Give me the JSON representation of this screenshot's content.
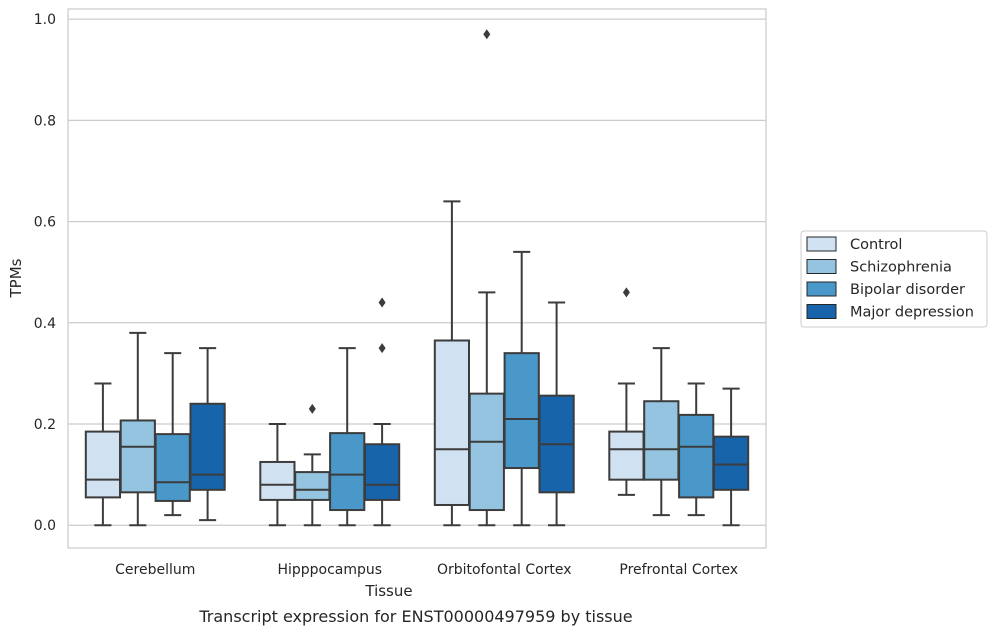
{
  "chart_data": {
    "type": "box",
    "xlabel": "Tissue",
    "ylabel": "TPMs",
    "caption": "Transcript expression for ENST00000497959 by tissue",
    "ylim": [
      -0.045,
      1.02
    ],
    "yticks": [
      "0.0",
      "0.2",
      "0.4",
      "0.6",
      "0.8",
      "1.0"
    ],
    "ytick_values": [
      0.0,
      0.2,
      0.4,
      0.6,
      0.8,
      1.0
    ],
    "grid": "horizontal",
    "legend_placement": "right",
    "categories": [
      "Cerebellum",
      "Hipppocampus",
      "Orbitofontal Cortex",
      "Prefrontal Cortex"
    ],
    "series": [
      {
        "name": "Control",
        "color": "#d0e1f2",
        "boxes": [
          {
            "whislo": 0.0,
            "q1": 0.055,
            "med": 0.09,
            "q3": 0.185,
            "whishi": 0.28,
            "fliers": []
          },
          {
            "whislo": 0.0,
            "q1": 0.05,
            "med": 0.08,
            "q3": 0.125,
            "whishi": 0.2,
            "fliers": []
          },
          {
            "whislo": 0.0,
            "q1": 0.04,
            "med": 0.15,
            "q3": 0.365,
            "whishi": 0.64,
            "fliers": []
          },
          {
            "whislo": 0.06,
            "q1": 0.09,
            "med": 0.15,
            "q3": 0.185,
            "whishi": 0.28,
            "fliers": [
              0.46
            ]
          }
        ]
      },
      {
        "name": "Schizophrenia",
        "color": "#94c4df",
        "boxes": [
          {
            "whislo": 0.0,
            "q1": 0.065,
            "med": 0.155,
            "q3": 0.207,
            "whishi": 0.38,
            "fliers": []
          },
          {
            "whislo": 0.0,
            "q1": 0.05,
            "med": 0.07,
            "q3": 0.105,
            "whishi": 0.14,
            "fliers": [
              0.23
            ]
          },
          {
            "whislo": 0.0,
            "q1": 0.03,
            "med": 0.165,
            "q3": 0.26,
            "whishi": 0.46,
            "fliers": [
              0.97
            ]
          },
          {
            "whislo": 0.02,
            "q1": 0.09,
            "med": 0.15,
            "q3": 0.245,
            "whishi": 0.35,
            "fliers": []
          }
        ]
      },
      {
        "name": "Bipolar disorder",
        "color": "#4a98c9",
        "boxes": [
          {
            "whislo": 0.02,
            "q1": 0.048,
            "med": 0.085,
            "q3": 0.18,
            "whishi": 0.34,
            "fliers": []
          },
          {
            "whislo": 0.0,
            "q1": 0.03,
            "med": 0.1,
            "q3": 0.182,
            "whishi": 0.35,
            "fliers": []
          },
          {
            "whislo": 0.0,
            "q1": 0.113,
            "med": 0.21,
            "q3": 0.34,
            "whishi": 0.54,
            "fliers": []
          },
          {
            "whislo": 0.02,
            "q1": 0.055,
            "med": 0.155,
            "q3": 0.218,
            "whishi": 0.28,
            "fliers": []
          }
        ]
      },
      {
        "name": "Major depression",
        "color": "#1764ab",
        "boxes": [
          {
            "whislo": 0.01,
            "q1": 0.07,
            "med": 0.1,
            "q3": 0.24,
            "whishi": 0.35,
            "fliers": []
          },
          {
            "whislo": 0.0,
            "q1": 0.05,
            "med": 0.08,
            "q3": 0.16,
            "whishi": 0.2,
            "fliers": [
              0.35,
              0.44
            ]
          },
          {
            "whislo": 0.0,
            "q1": 0.065,
            "med": 0.16,
            "q3": 0.256,
            "whishi": 0.44,
            "fliers": []
          },
          {
            "whislo": 0.0,
            "q1": 0.07,
            "med": 0.12,
            "q3": 0.175,
            "whishi": 0.27,
            "fliers": []
          }
        ]
      }
    ]
  }
}
